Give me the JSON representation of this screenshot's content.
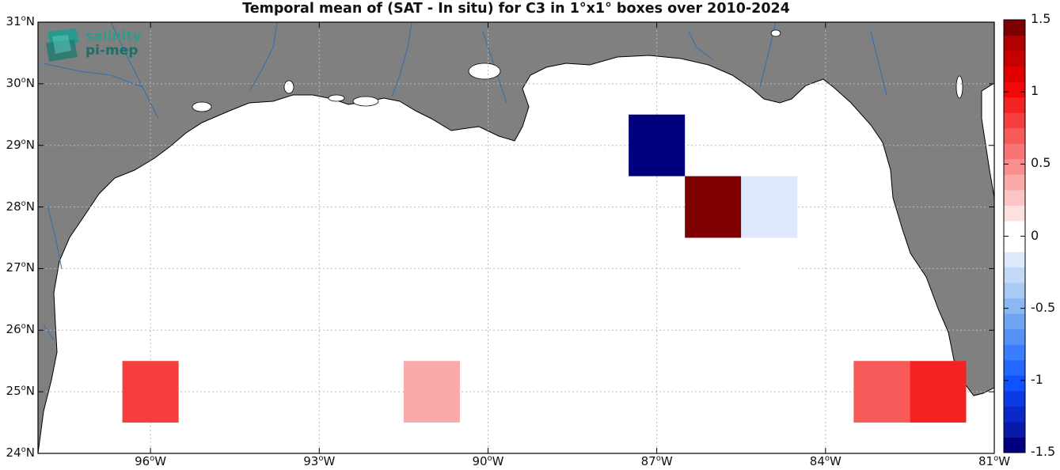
{
  "title": "Temporal mean of (SAT - In situ) for C3 in 1°x1° boxes over 2010-2024",
  "logo": {
    "line1": "salinity",
    "line2": "pi-mep"
  },
  "map": {
    "lon_range": [
      -98,
      -81
    ],
    "lat_range": [
      24,
      31
    ],
    "y_ticks": [
      {
        "lat": 31,
        "deg": "31",
        "hem": "N"
      },
      {
        "lat": 30,
        "deg": "30",
        "hem": "N"
      },
      {
        "lat": 29,
        "deg": "29",
        "hem": "N"
      },
      {
        "lat": 28,
        "deg": "28",
        "hem": "N"
      },
      {
        "lat": 27,
        "deg": "27",
        "hem": "N"
      },
      {
        "lat": 26,
        "deg": "26",
        "hem": "N"
      },
      {
        "lat": 25,
        "deg": "25",
        "hem": "N"
      },
      {
        "lat": 24,
        "deg": "24",
        "hem": "N"
      }
    ],
    "x_ticks": [
      {
        "lon": -96,
        "deg": "96",
        "hem": "W"
      },
      {
        "lon": -93,
        "deg": "93",
        "hem": "W"
      },
      {
        "lon": -90,
        "deg": "90",
        "hem": "W"
      },
      {
        "lon": -87,
        "deg": "87",
        "hem": "W"
      },
      {
        "lon": -84,
        "deg": "84",
        "hem": "W"
      },
      {
        "lon": -81,
        "deg": "81",
        "hem": "W"
      }
    ],
    "grid": true,
    "land_color": "#808080",
    "boxes": [
      {
        "lon": -87,
        "lat": 29,
        "value": -1.5
      },
      {
        "lon": -86,
        "lat": 28,
        "value": 1.4
      },
      {
        "lon": -85,
        "lat": 28,
        "value": -0.2
      },
      {
        "lon": -85,
        "lat": 27,
        "value": 0.1
      },
      {
        "lon": -96,
        "lat": 25,
        "value": 0.85
      },
      {
        "lon": -91,
        "lat": 25,
        "value": 0.4
      },
      {
        "lon": -83,
        "lat": 25,
        "value": 0.7
      },
      {
        "lon": -82,
        "lat": 25,
        "value": 0.95
      }
    ]
  },
  "colorbar": {
    "range": [
      -1.5,
      1.5
    ],
    "tick_labels": [
      {
        "value": 1.5,
        "label": "1.5"
      },
      {
        "value": 1,
        "label": "1"
      },
      {
        "value": 0.5,
        "label": "0.5"
      },
      {
        "value": 0,
        "label": "0"
      },
      {
        "value": -0.5,
        "label": "-0.5"
      },
      {
        "value": -1,
        "label": "-1"
      },
      {
        "value": -1.5,
        "label": "-1.5"
      }
    ],
    "colors_low_to_high": [
      "#00007f",
      "#0a1aa8",
      "#0b28c9",
      "#0b3be6",
      "#0f52ff",
      "#2468ff",
      "#3a7dff",
      "#5492f6",
      "#6ea6f4",
      "#8bb8f2",
      "#a7cbf5",
      "#c3daf7",
      "#dde9fb",
      "#ffffff",
      "#ffffff",
      "#fde0e0",
      "#fcc5c5",
      "#fbaaaa",
      "#fa8f8f",
      "#f97575",
      "#f85a5a",
      "#f73e3e",
      "#f52222",
      "#f20808",
      "#e00000",
      "#c80000",
      "#b00000",
      "#7f0000"
    ]
  }
}
